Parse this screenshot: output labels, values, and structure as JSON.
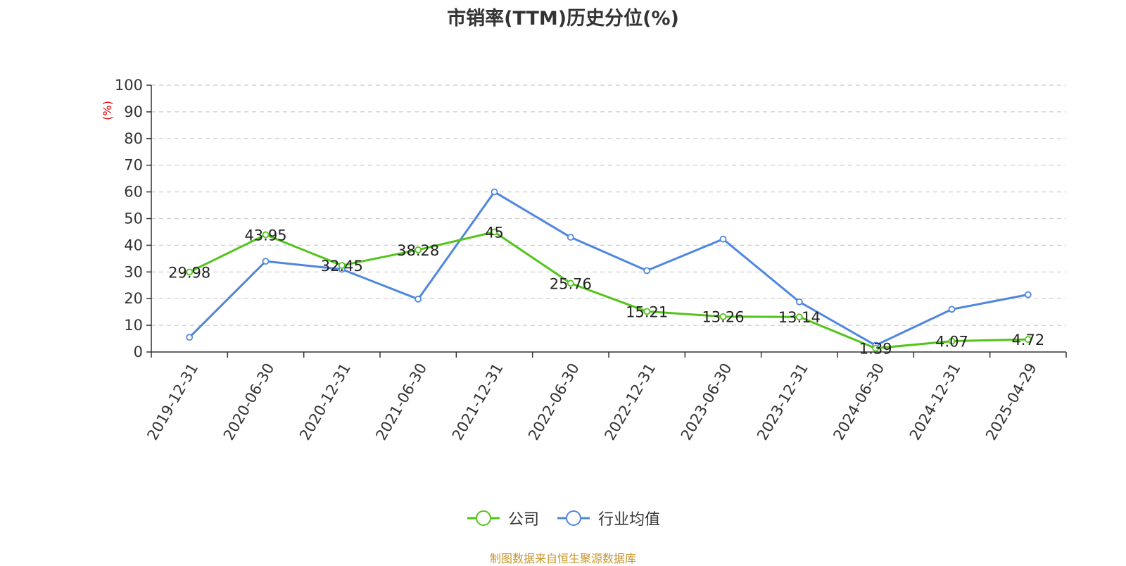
{
  "chart_data": {
    "type": "line",
    "title": "市销率(TTM)历史分位(%)",
    "ylabel": "(%)",
    "ylim": [
      0,
      100
    ],
    "yticks": [
      0,
      10,
      20,
      30,
      40,
      50,
      60,
      70,
      80,
      90,
      100
    ],
    "categories": [
      "2019-12-31",
      "2020-06-30",
      "2020-12-31",
      "2021-06-30",
      "2021-12-31",
      "2022-06-30",
      "2022-12-31",
      "2023-06-30",
      "2023-12-31",
      "2024-06-30",
      "2024-12-31",
      "2025-04-29"
    ],
    "series": [
      {
        "name": "公司",
        "color": "#52c41a",
        "values": [
          29.98,
          43.95,
          32.45,
          38.28,
          45,
          25.76,
          15.21,
          13.26,
          13.14,
          1.39,
          4.07,
          4.72
        ],
        "labels": [
          "29.98",
          "43.95",
          "32.45",
          "38.28",
          "45",
          "25.76",
          "15.21",
          "13.26",
          "13.14",
          "1.39",
          "4.07",
          "4.72"
        ]
      },
      {
        "name": "行业均值",
        "color": "#4f86e0",
        "values": [
          5.5,
          34,
          31,
          19.8,
          60,
          43,
          30.5,
          42.3,
          18.8,
          2.5,
          16,
          21.5
        ]
      }
    ],
    "grid": true,
    "legend_position": "bottom"
  },
  "source_text": "制图数据来自恒生聚源数据库",
  "source_color": "#c8962d",
  "ylabel_color": "#e00000"
}
